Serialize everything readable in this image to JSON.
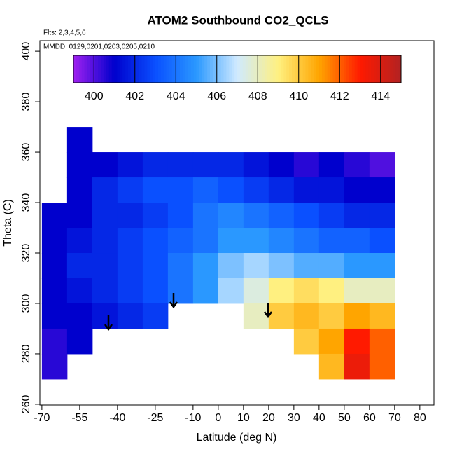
{
  "chart_data": {
    "type": "heatmap",
    "title": "ATOM2 Southbound CO2_QCLS",
    "annotations": [
      "Flts: 2,3,4,5,6",
      "MMDD: 0129,0201,0203,0205,0210"
    ],
    "x_label": "Latitude (deg N)",
    "y_label": "Theta (C)",
    "xlim": [
      -70.8,
      85.6
    ],
    "ylim": [
      259.7,
      404.2
    ],
    "xticks": [
      -70,
      -55,
      -40,
      -25,
      -10,
      0,
      10,
      20,
      30,
      40,
      50,
      60,
      70,
      80
    ],
    "yticks": [
      260,
      280,
      300,
      320,
      340,
      360,
      380,
      400
    ],
    "x": [
      -65,
      -55,
      -45,
      -35,
      -25,
      -15,
      -5,
      5,
      15,
      25,
      35,
      45,
      55,
      65
    ],
    "y": [
      365,
      355,
      345,
      335,
      325,
      315,
      305,
      295,
      285,
      275
    ],
    "values": [
      [
        null,
        401,
        null,
        null,
        null,
        null,
        null,
        null,
        null,
        null,
        null,
        null,
        null,
        null
      ],
      [
        null,
        401,
        401,
        401.5,
        402,
        402,
        402,
        402,
        401.5,
        401,
        400.5,
        401,
        400.5,
        400
      ],
      [
        null,
        401,
        402,
        402.5,
        403,
        403,
        403.5,
        403,
        402.5,
        402,
        401.5,
        401.5,
        401,
        401
      ],
      [
        401,
        401,
        402,
        402,
        402.5,
        403,
        404,
        404.5,
        404,
        403.5,
        403,
        402.5,
        402,
        402
      ],
      [
        401,
        401.5,
        402,
        402.5,
        403,
        403.5,
        404,
        405,
        405,
        404.5,
        404,
        403.5,
        403.5,
        403
      ],
      [
        401,
        402,
        402,
        402.5,
        403,
        404,
        405,
        406,
        406.5,
        406,
        405.5,
        405.5,
        405,
        405
      ],
      [
        401,
        401.5,
        402,
        402.5,
        403,
        404,
        405,
        406.5,
        407.5,
        409,
        409.5,
        409,
        408,
        408
      ],
      [
        401,
        401,
        401.5,
        402,
        402.5,
        null,
        null,
        null,
        408,
        410,
        410.5,
        410,
        411,
        410.5
      ],
      [
        400.5,
        401,
        null,
        null,
        null,
        null,
        null,
        null,
        null,
        null,
        410,
        411,
        413,
        412
      ],
      [
        400.5,
        null,
        null,
        null,
        null,
        null,
        null,
        null,
        null,
        null,
        null,
        410.5,
        413.5,
        412
      ]
    ],
    "colorbar": {
      "lim": [
        399,
        415
      ],
      "ticks": [
        400,
        402,
        404,
        406,
        408,
        410,
        412,
        414
      ]
    },
    "colormap": [
      "#a020f0",
      "#0000cd",
      "#0a50ff",
      "#2a98ff",
      "#cfeaff",
      "#fff080",
      "#ffa500",
      "#ff1a00",
      "#b22222"
    ]
  }
}
